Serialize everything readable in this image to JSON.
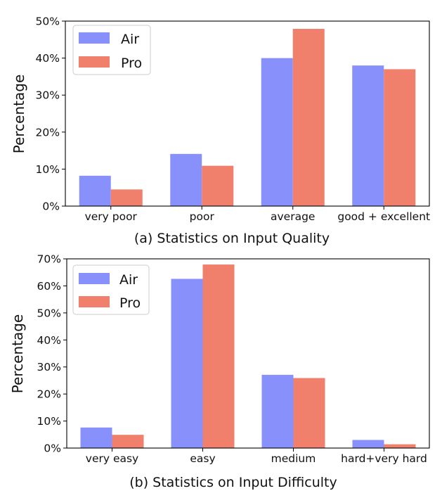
{
  "colors": {
    "air": "#8891FB",
    "pro": "#F07F6C"
  },
  "chart_data": [
    {
      "type": "bar",
      "title": "(a) Statistics on Input Quality",
      "ylabel": "Percentage",
      "xlabel": "",
      "ylim": [
        0,
        50
      ],
      "yticks": [
        0,
        10,
        20,
        30,
        40,
        50
      ],
      "ytick_labels": [
        "0%",
        "10%",
        "20%",
        "30%",
        "40%",
        "50%"
      ],
      "categories": [
        "very poor",
        "poor",
        "average",
        "good + excellent"
      ],
      "legend": "top-left",
      "series": [
        {
          "name": "Air",
          "values": [
            8.2,
            14.1,
            40.0,
            38.0
          ]
        },
        {
          "name": "Pro",
          "values": [
            4.5,
            10.9,
            47.9,
            37.0
          ]
        }
      ]
    },
    {
      "type": "bar",
      "title": "(b) Statistics on Input Difficulty",
      "ylabel": "Percentage",
      "xlabel": "",
      "ylim": [
        0,
        70
      ],
      "yticks": [
        0,
        10,
        20,
        30,
        40,
        50,
        60,
        70
      ],
      "ytick_labels": [
        "0%",
        "10%",
        "20%",
        "30%",
        "40%",
        "50%",
        "60%",
        "70%"
      ],
      "categories": [
        "very easy",
        "easy",
        "medium",
        "hard+very hard"
      ],
      "legend": "top-left",
      "series": [
        {
          "name": "Air",
          "values": [
            7.6,
            62.6,
            27.1,
            3.0
          ]
        },
        {
          "name": "Pro",
          "values": [
            4.9,
            67.9,
            25.9,
            1.4
          ]
        }
      ]
    }
  ]
}
